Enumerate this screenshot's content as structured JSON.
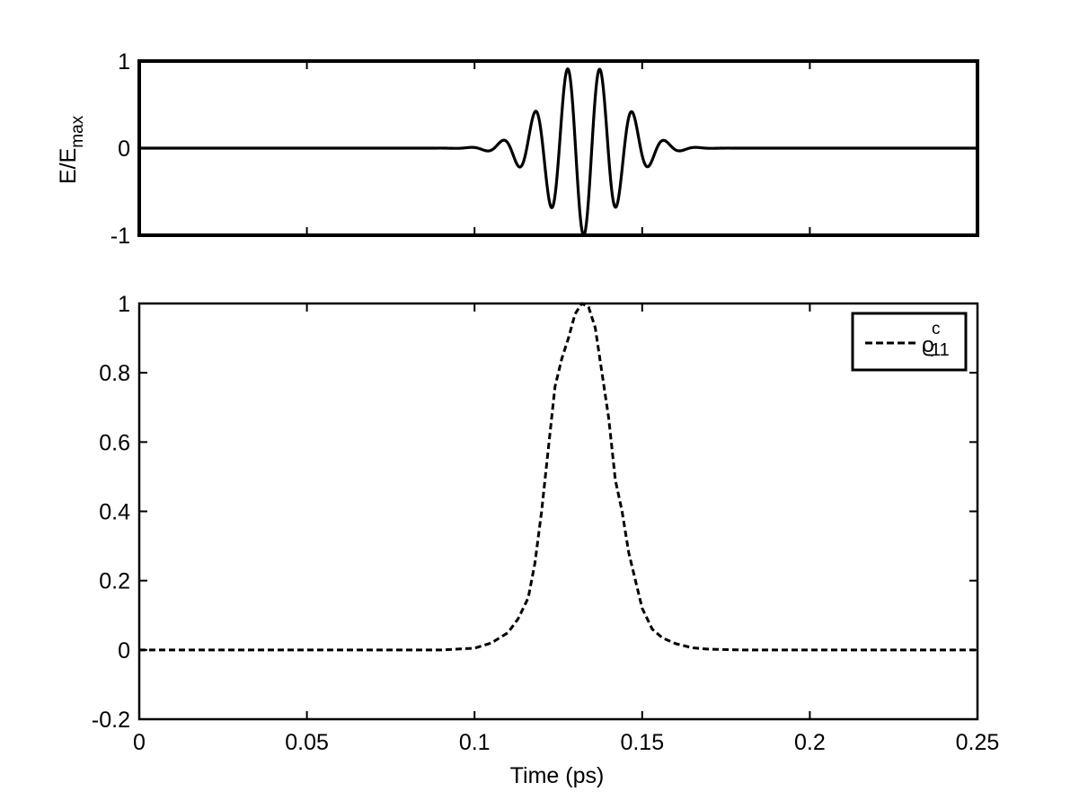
{
  "chart_data": [
    {
      "type": "line",
      "ylabel": "E/E",
      "ylabel_sub": "max",
      "xlim": [
        0,
        0.25
      ],
      "ylim": [
        -1,
        1
      ],
      "yticks": [
        -1,
        0,
        1
      ],
      "ytick_labels": [
        "-1",
        "0",
        "1"
      ],
      "xticks": [
        0,
        0.05,
        0.1,
        0.15,
        0.2,
        0.25
      ],
      "grid": false,
      "series": [
        {
          "style": "solid",
          "color": "#000000",
          "description_params": {
            "center_ps": 0.1325,
            "period_ps": 0.0097,
            "envelope_width_ps": 0.0155,
            "amplitude": 1.0,
            "phase_rad": 3.11
          },
          "x": [
            0,
            0.08,
            0.085,
            0.09,
            0.095,
            0.1,
            0.105,
            0.11,
            0.115,
            0.12,
            0.125,
            0.1305,
            0.1345,
            0.1395,
            0.1445,
            0.149,
            0.154,
            0.159,
            0.164,
            0.169,
            0.174,
            0.18,
            0.25
          ],
          "y": [
            0,
            0.0,
            0.02,
            -0.04,
            0.05,
            -0.08,
            0.13,
            -0.22,
            0.33,
            -0.55,
            0.77,
            -0.98,
            0.97,
            -0.77,
            0.52,
            -0.33,
            0.2,
            -0.12,
            0.07,
            -0.04,
            0.02,
            0.0,
            0
          ]
        }
      ]
    },
    {
      "type": "line",
      "xlabel": "Time (ps)",
      "xlim": [
        0,
        0.25
      ],
      "ylim": [
        -0.2,
        1
      ],
      "xticks": [
        0,
        0.05,
        0.1,
        0.15,
        0.2,
        0.25
      ],
      "xtick_labels": [
        "0",
        "0.05",
        "0.1",
        "0.15",
        "0.2",
        "0.25"
      ],
      "yticks": [
        -0.2,
        0,
        0.2,
        0.4,
        0.6,
        0.8,
        1
      ],
      "ytick_labels": [
        "-0.2",
        "0",
        "0.2",
        "0.4",
        "0.6",
        "0.8",
        "1"
      ],
      "grid": false,
      "legend_position": "top-right",
      "series": [
        {
          "name": "ϱ",
          "name_sub": "11",
          "name_sup": "c",
          "style": "dashed",
          "color": "#000000",
          "x": [
            0,
            0.09,
            0.1,
            0.105,
            0.11,
            0.113,
            0.116,
            0.118,
            0.12,
            0.122,
            0.124,
            0.126,
            0.128,
            0.13,
            0.132,
            0.134,
            0.136,
            0.138,
            0.14,
            0.142,
            0.144,
            0.146,
            0.148,
            0.15,
            0.153,
            0.156,
            0.16,
            0.165,
            0.17,
            0.18,
            0.25
          ],
          "y": [
            0,
            0.0,
            0.005,
            0.02,
            0.05,
            0.09,
            0.15,
            0.25,
            0.4,
            0.58,
            0.76,
            0.84,
            0.9,
            0.97,
            1.0,
            0.99,
            0.93,
            0.8,
            0.67,
            0.49,
            0.4,
            0.28,
            0.2,
            0.12,
            0.06,
            0.035,
            0.018,
            0.006,
            0.002,
            0.0,
            0
          ]
        }
      ]
    }
  ]
}
